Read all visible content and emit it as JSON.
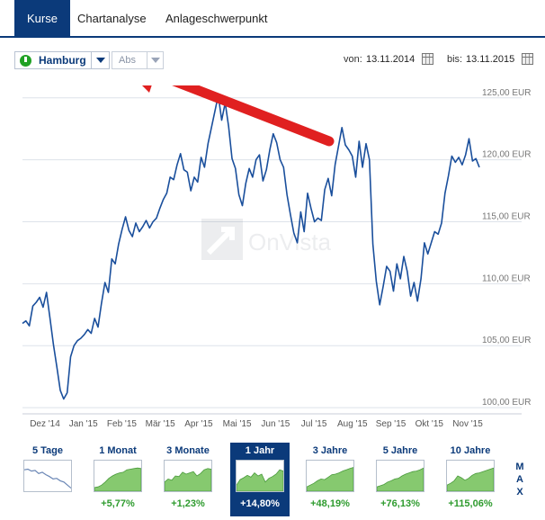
{
  "tabs": [
    "Kurse",
    "Chartanalyse",
    "Anlageschwerpunkt"
  ],
  "exchange": {
    "name": "Hamburg",
    "status_color": "#1fa124"
  },
  "mode": {
    "label": "Abs"
  },
  "range": {
    "from_label": "von:",
    "from": "13.11.2014",
    "to_label": "bis:",
    "to": "13.11.2015"
  },
  "watermark": "OnVista",
  "colors": {
    "line": "#1a4f9c",
    "accent": "#0b3a7a",
    "arrow": "#e02020",
    "positive": "#2e9b2e"
  },
  "chart_data": {
    "type": "line",
    "x_labels": [
      "Dez '14",
      "Jan '15",
      "Feb '15",
      "Mär '15",
      "Apr '15",
      "Mai '15",
      "Jun '15",
      "Jul '15",
      "Aug '15",
      "Sep '15",
      "Okt '15",
      "Nov '15"
    ],
    "y_ticks": [
      "100,00 EUR",
      "105,00 EUR",
      "110,00 EUR",
      "115,00 EUR",
      "120,00 EUR",
      "125,00 EUR"
    ],
    "ylim": [
      99.5,
      126
    ],
    "grid": true,
    "series": [
      {
        "values": [
          106.8,
          107.0,
          106.6,
          108.2,
          108.5,
          108.9,
          108.1,
          109.3,
          107.2,
          105.1,
          103.3,
          101.4,
          100.7,
          101.2,
          104.1,
          105.0,
          105.4,
          105.6,
          105.9,
          106.3,
          106.0,
          107.2,
          106.5,
          108.4,
          110.1,
          109.3,
          112.0,
          111.6,
          113.2,
          114.4,
          115.4,
          114.3,
          113.8,
          114.9,
          114.2,
          114.6,
          115.1,
          114.5,
          115.0,
          115.3,
          116.1,
          116.8,
          117.3,
          118.6,
          118.4,
          119.6,
          120.5,
          119.2,
          119.0,
          117.5,
          118.6,
          118.2,
          120.2,
          119.4,
          121.3,
          122.6,
          123.9,
          125.2,
          123.2,
          124.6,
          122.7,
          120.1,
          119.3,
          117.2,
          116.3,
          118.1,
          119.3,
          118.6,
          120.0,
          120.4,
          118.3,
          119.2,
          120.8,
          122.1,
          121.4,
          120.0,
          119.4,
          117.2,
          115.6,
          114.1,
          113.3,
          115.8,
          114.2,
          117.3,
          116.1,
          115.0,
          115.3,
          115.1,
          117.6,
          118.5,
          117.1,
          119.6,
          121.1,
          122.6,
          121.2,
          120.8,
          120.3,
          118.6,
          121.5,
          119.4,
          121.3,
          120.0,
          113.2,
          110.2,
          108.3,
          109.8,
          111.4,
          111.0,
          109.4,
          111.6,
          110.4,
          112.2,
          111.0,
          109.0,
          110.1,
          108.6,
          110.4,
          113.3,
          112.4,
          113.3,
          114.2,
          114.0,
          114.9,
          117.3,
          118.7,
          120.3,
          119.8,
          120.2,
          119.6,
          120.4,
          121.7,
          119.9,
          120.1,
          119.4
        ]
      }
    ]
  },
  "periods": [
    {
      "label": "5 Tage",
      "change": ""
    },
    {
      "label": "1 Monat",
      "change": "+5,77%"
    },
    {
      "label": "3 Monate",
      "change": "+1,23%"
    },
    {
      "label": "1 Jahr",
      "change": "+14,80%"
    },
    {
      "label": "3 Jahre",
      "change": "+48,19%"
    },
    {
      "label": "5 Jahre",
      "change": "+76,13%"
    },
    {
      "label": "10 Jahre",
      "change": "+115,06%"
    }
  ],
  "max_label": "M\nA\nX"
}
